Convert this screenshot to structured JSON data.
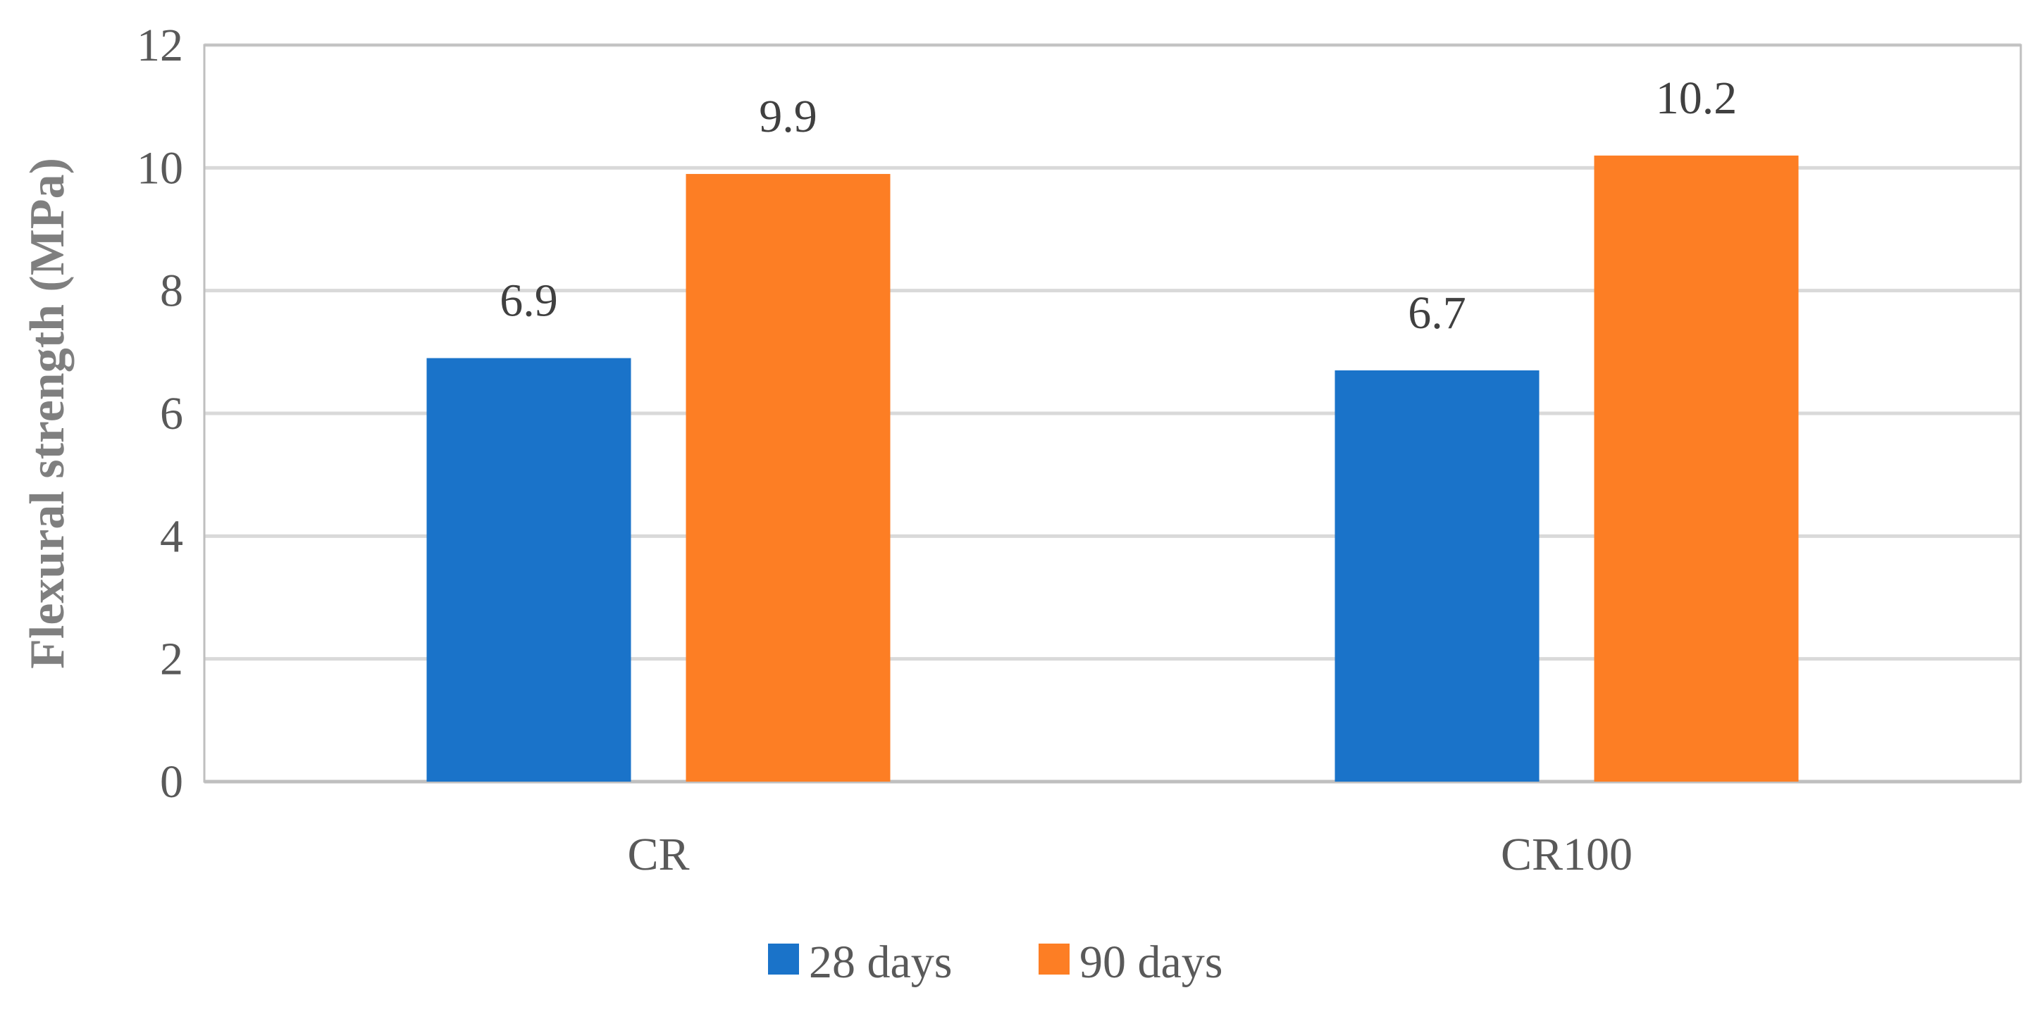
{
  "chart_data": {
    "type": "bar",
    "title": "",
    "xlabel": "",
    "ylabel": "Flexural strength (MPa)",
    "categories": [
      "CR",
      "CR100"
    ],
    "series": [
      {
        "name": "28 days",
        "values": [
          6.9,
          6.7
        ],
        "labels": [
          "6.9",
          "6.7"
        ],
        "color": "#1a73c9"
      },
      {
        "name": "90 days",
        "values": [
          9.9,
          10.2
        ],
        "labels": [
          "9.9",
          "10.2"
        ],
        "color": "#fd7e24"
      }
    ],
    "ylim": [
      0,
      12
    ],
    "yticks": [
      "0",
      "2",
      "4",
      "6",
      "8",
      "10",
      "12"
    ],
    "grid": true,
    "legend_position": "bottom",
    "colors": {
      "grid": "#d9d9d9",
      "axis": "#bfbfbf",
      "plot_border": "#bfbfbf"
    }
  }
}
